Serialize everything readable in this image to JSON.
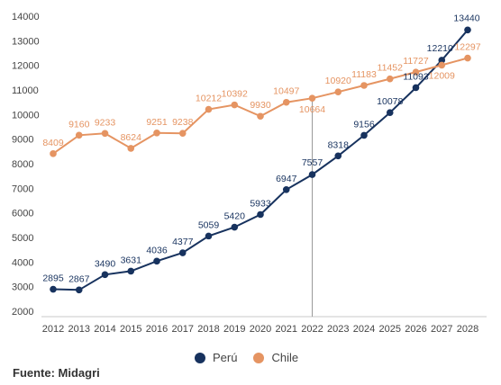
{
  "chart_data": {
    "type": "line",
    "x": [
      "2012",
      "2013",
      "2014",
      "2015",
      "2016",
      "2017",
      "2018",
      "2019",
      "2020",
      "2021",
      "2022",
      "2023",
      "2024",
      "2025",
      "2026",
      "2027",
      "2028"
    ],
    "series": [
      {
        "name": "Perú",
        "color": "#17325e",
        "values": [
          2895,
          2867,
          3490,
          3631,
          4036,
          4377,
          5059,
          5420,
          5933,
          6947,
          7557,
          8318,
          9156,
          10078,
          11093,
          12210,
          13440
        ]
      },
      {
        "name": "Chile",
        "color": "#e59462",
        "values": [
          8409,
          9160,
          9233,
          8624,
          9251,
          9238,
          10212,
          10392,
          9930,
          10497,
          10664,
          10920,
          11183,
          11452,
          11727,
          12009,
          12297
        ]
      }
    ],
    "yticks": [
      2000,
      3000,
      4000,
      5000,
      6000,
      7000,
      8000,
      9000,
      10000,
      11000,
      12000,
      13000,
      14000
    ],
    "ylim": [
      2000,
      14000
    ],
    "grid": false,
    "legend_position": "bottom",
    "reference_line_x": "2022"
  },
  "source": "Fuente: Midagri"
}
